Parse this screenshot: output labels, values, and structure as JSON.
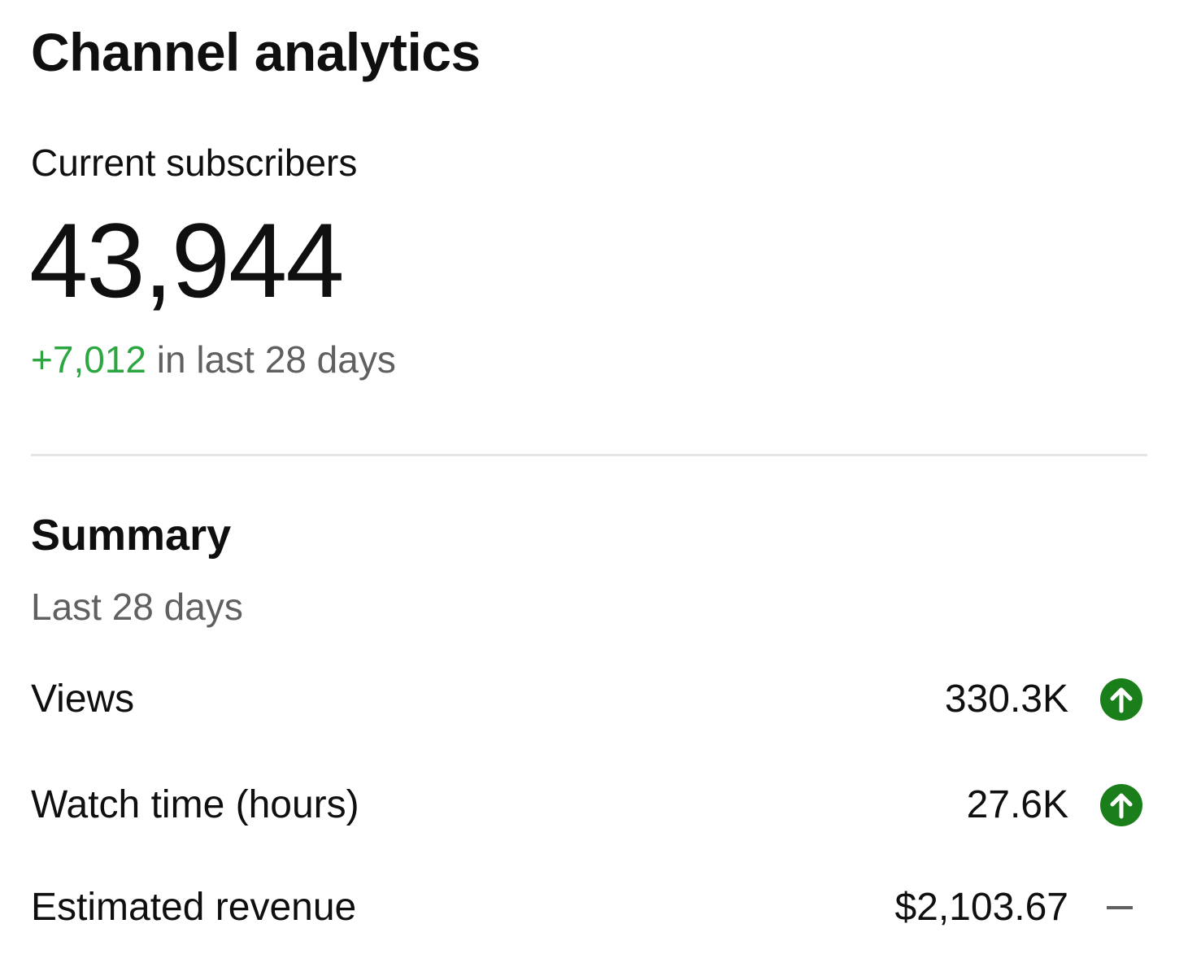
{
  "header": {
    "title": "Channel analytics"
  },
  "subscribers": {
    "label": "Current subscribers",
    "count": "43,944",
    "delta": "+7,012",
    "period": " in last 28 days"
  },
  "summary": {
    "title": "Summary",
    "period": "Last 28 days",
    "metrics": [
      {
        "label": "Views",
        "value": "330.3K",
        "trend": "up",
        "trend_icon": "arrow-up-circle-icon"
      },
      {
        "label": "Watch time (hours)",
        "value": "27.6K",
        "trend": "up",
        "trend_icon": "arrow-up-circle-icon"
      },
      {
        "label": "Estimated revenue",
        "value": "$2,103.67",
        "trend": "flat",
        "trend_icon": "dash-icon"
      }
    ]
  },
  "colors": {
    "positive": "#2ba640",
    "trend_up_icon": "#1a7f1a",
    "muted_text": "#606060",
    "divider": "#e5e5e5",
    "flat_icon": "#606060"
  }
}
